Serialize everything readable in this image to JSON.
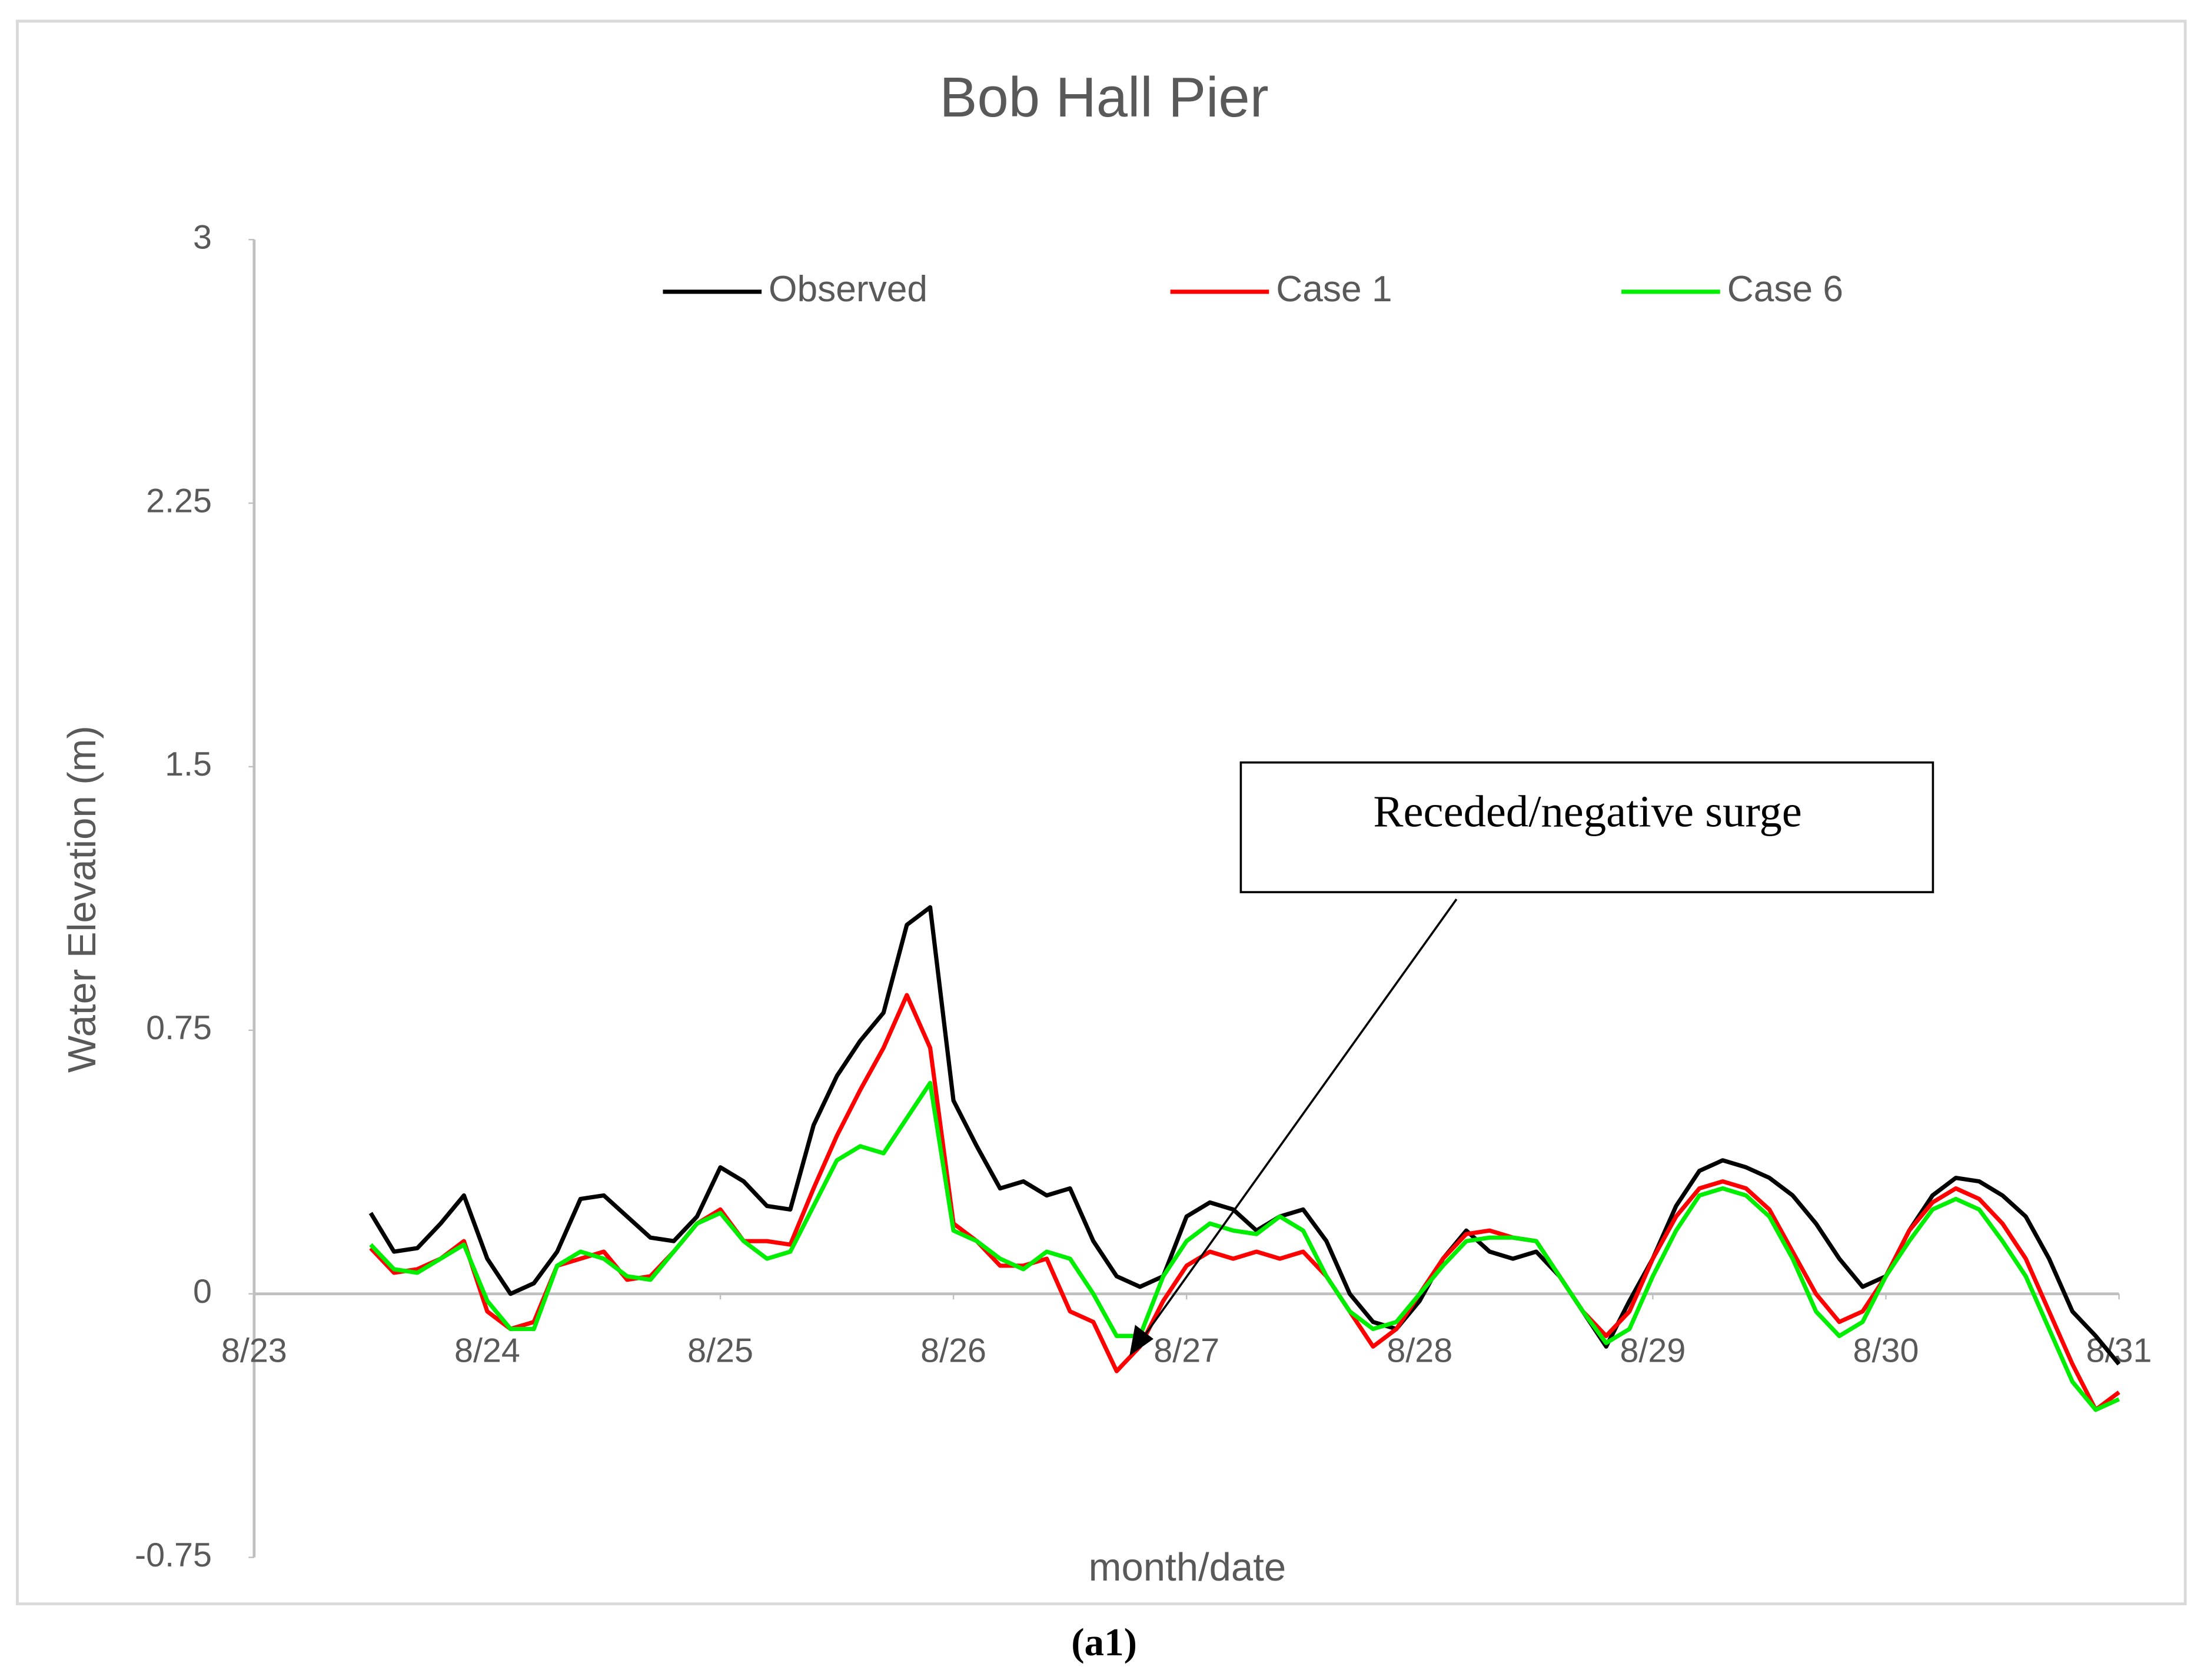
{
  "chart_data": {
    "type": "line",
    "title": "Bob Hall Pier",
    "xlabel": "month/date",
    "ylabel": "Water Elevation (m)",
    "annotation": "Receded/negative surge",
    "caption": "(a1)",
    "legend": "top",
    "xlim": [
      23,
      31
    ],
    "xticks": [
      {
        "value": 23,
        "label": "8/23"
      },
      {
        "value": 24,
        "label": "8/24"
      },
      {
        "value": 25,
        "label": "8/25"
      },
      {
        "value": 26,
        "label": "8/26"
      },
      {
        "value": 27,
        "label": "8/27"
      },
      {
        "value": 28,
        "label": "8/28"
      },
      {
        "value": 29,
        "label": "8/29"
      },
      {
        "value": 30,
        "label": "8/30"
      },
      {
        "value": 31,
        "label": "8/31"
      }
    ],
    "ylim": [
      -0.75,
      3
    ],
    "yticks": [
      -0.75,
      0,
      0.75,
      1.5,
      2.25,
      3
    ],
    "x": [
      23.5,
      23.6,
      23.7,
      23.8,
      23.9,
      24.0,
      24.1,
      24.2,
      24.3,
      24.4,
      24.5,
      24.6,
      24.7,
      24.8,
      24.9,
      25.0,
      25.1,
      25.2,
      25.3,
      25.4,
      25.5,
      25.6,
      25.7,
      25.8,
      25.9,
      26.0,
      26.1,
      26.2,
      26.3,
      26.4,
      26.5,
      26.6,
      26.7,
      26.8,
      26.9,
      27.0,
      27.1,
      27.2,
      27.3,
      27.4,
      27.5,
      27.6,
      27.7,
      27.8,
      27.9,
      28.0,
      28.1,
      28.2,
      28.3,
      28.4,
      28.5,
      28.6,
      28.7,
      28.8,
      28.9,
      29.0,
      29.1,
      29.2,
      29.3,
      29.4,
      29.5,
      29.6,
      29.7,
      29.8,
      29.9,
      30.0,
      30.1,
      30.2,
      30.3,
      30.4,
      30.5,
      30.6,
      30.7,
      30.8,
      30.9,
      31.0
    ],
    "series": [
      {
        "name": "Observed",
        "color": "#000000",
        "values": [
          0.23,
          0.12,
          0.13,
          0.2,
          0.28,
          0.1,
          0.0,
          0.03,
          0.12,
          0.27,
          0.28,
          0.22,
          0.16,
          0.15,
          0.22,
          0.36,
          0.32,
          0.25,
          0.24,
          0.48,
          0.62,
          0.72,
          0.8,
          1.05,
          1.1,
          0.55,
          0.42,
          0.3,
          0.32,
          0.28,
          0.3,
          0.15,
          0.05,
          0.02,
          0.05,
          0.22,
          0.26,
          0.24,
          0.18,
          0.22,
          0.24,
          0.15,
          0.0,
          -0.08,
          -0.1,
          -0.02,
          0.1,
          0.18,
          0.12,
          0.1,
          0.12,
          0.05,
          -0.05,
          -0.15,
          -0.02,
          0.1,
          0.25,
          0.35,
          0.38,
          0.36,
          0.33,
          0.28,
          0.2,
          0.1,
          0.02,
          0.05,
          0.18,
          0.28,
          0.33,
          0.32,
          0.28,
          0.22,
          0.1,
          -0.05,
          -0.12,
          -0.2
        ]
      },
      {
        "name": "Case 1",
        "color": "#ff0000",
        "values": [
          0.13,
          0.06,
          0.07,
          0.1,
          0.15,
          -0.05,
          -0.1,
          -0.08,
          0.08,
          0.1,
          0.12,
          0.04,
          0.05,
          0.12,
          0.2,
          0.24,
          0.15,
          0.15,
          0.14,
          0.3,
          0.45,
          0.58,
          0.7,
          0.85,
          0.7,
          0.2,
          0.15,
          0.08,
          0.08,
          0.1,
          -0.05,
          -0.08,
          -0.22,
          -0.15,
          -0.02,
          0.08,
          0.12,
          0.1,
          0.12,
          0.1,
          0.12,
          0.05,
          -0.05,
          -0.15,
          -0.1,
          0.0,
          0.1,
          0.17,
          0.18,
          0.16,
          0.15,
          0.05,
          -0.05,
          -0.12,
          -0.05,
          0.1,
          0.22,
          0.3,
          0.32,
          0.3,
          0.24,
          0.12,
          0.0,
          -0.08,
          -0.05,
          0.05,
          0.18,
          0.26,
          0.3,
          0.27,
          0.2,
          0.1,
          -0.05,
          -0.2,
          -0.33,
          -0.28
        ]
      },
      {
        "name": "Case 6",
        "color": "#00ee00",
        "values": [
          0.14,
          0.07,
          0.06,
          0.1,
          0.14,
          -0.02,
          -0.1,
          -0.1,
          0.08,
          0.12,
          0.1,
          0.05,
          0.04,
          0.12,
          0.2,
          0.23,
          0.15,
          0.1,
          0.12,
          0.25,
          0.38,
          0.42,
          0.4,
          0.5,
          0.6,
          0.18,
          0.15,
          0.1,
          0.07,
          0.12,
          0.1,
          0.0,
          -0.12,
          -0.12,
          0.05,
          0.15,
          0.2,
          0.18,
          0.17,
          0.22,
          0.18,
          0.05,
          -0.05,
          -0.1,
          -0.08,
          0.0,
          0.08,
          0.15,
          0.16,
          0.16,
          0.15,
          0.05,
          -0.05,
          -0.14,
          -0.1,
          0.05,
          0.18,
          0.28,
          0.3,
          0.28,
          0.22,
          0.1,
          -0.05,
          -0.12,
          -0.08,
          0.05,
          0.15,
          0.24,
          0.27,
          0.24,
          0.15,
          0.05,
          -0.1,
          -0.25,
          -0.33,
          -0.3
        ]
      }
    ]
  }
}
